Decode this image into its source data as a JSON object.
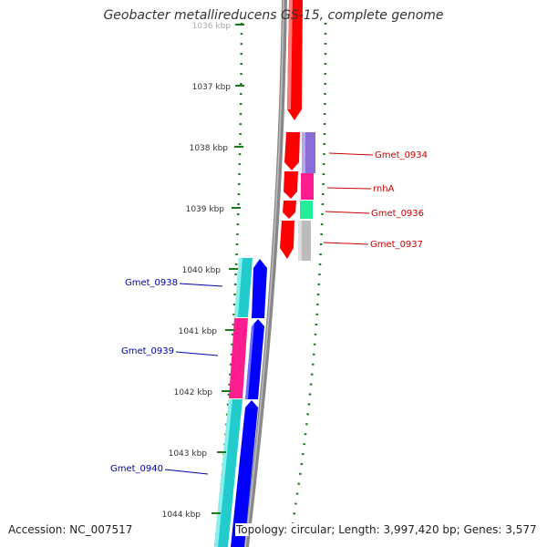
{
  "title": "Geobacter metallireducens GS-15, complete genome",
  "footer": {
    "accession": "Accession: NC_007517",
    "summary": "Topology: circular; Length: 3,997,420 bp; Genes: 3,577"
  },
  "ticks": [
    {
      "label": "1036 kbp"
    },
    {
      "label": "1037 kbp"
    },
    {
      "label": "1038 kbp"
    },
    {
      "label": "1039 kbp"
    },
    {
      "label": "1040 kbp"
    },
    {
      "label": "1041 kbp"
    },
    {
      "label": "1042 kbp"
    },
    {
      "label": "1043 kbp"
    },
    {
      "label": "1044 kbp"
    }
  ],
  "genes": {
    "forward_strand": [
      {
        "label": "Gmet_0934",
        "color": "#cc0000"
      },
      {
        "label": "rnhA",
        "color": "#cc0000"
      },
      {
        "label": "Gmet_0936",
        "color": "#cc0000"
      },
      {
        "label": "Gmet_0937",
        "color": "#cc0000"
      }
    ],
    "reverse_strand": [
      {
        "label": "Gmet_0938",
        "color": "#0000aa"
      },
      {
        "label": "Gmet_0939",
        "color": "#0000aa"
      },
      {
        "label": "Gmet_0940",
        "color": "#0000aa"
      }
    ]
  },
  "colors": {
    "forward_cds": "#ff0000",
    "reverse_cds": "#0000ff",
    "backbone": "#888888",
    "gc_dots": "#1a7a1a",
    "cog_purple": "#8a6bd8",
    "cog_pink": "#ff1e90",
    "cog_mint": "#22ee99",
    "cog_grey": "#bbbbbb",
    "cog_cyan": "#22cccc"
  }
}
